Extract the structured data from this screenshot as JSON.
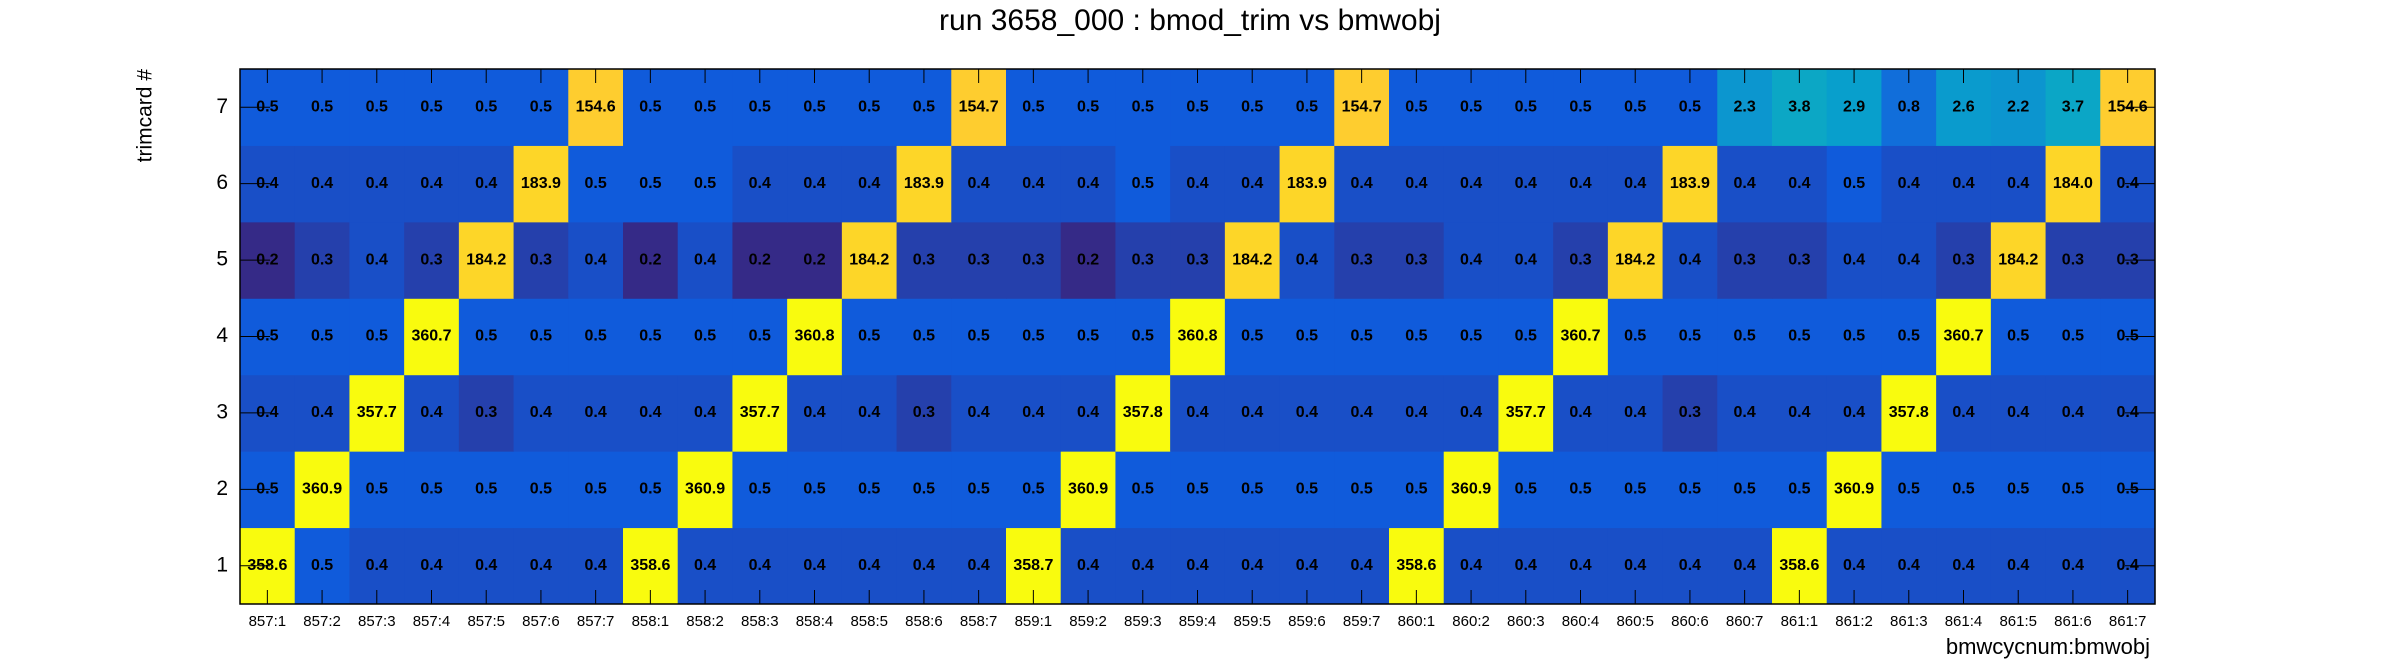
{
  "chart_data": {
    "type": "heatmap",
    "title": "run 3658_000 : bmod_trim vs bmwobj",
    "x_label": "bmwcycnum:bmwobj",
    "y_label": "trimcard #",
    "x": [
      "857:1",
      "857:2",
      "857:3",
      "857:4",
      "857:5",
      "857:6",
      "857:7",
      "858:1",
      "858:2",
      "858:3",
      "858:4",
      "858:5",
      "858:6",
      "858:7",
      "859:1",
      "859:2",
      "859:3",
      "859:4",
      "859:5",
      "859:6",
      "859:7",
      "860:1",
      "860:2",
      "860:3",
      "860:4",
      "860:5",
      "860:6",
      "860:7",
      "861:1",
      "861:2",
      "861:3",
      "861:4",
      "861:5",
      "861:6",
      "861:7"
    ],
    "y": [
      "1",
      "2",
      "3",
      "4",
      "5",
      "6",
      "7"
    ],
    "zlog": true,
    "colormap": [
      "#352a87",
      "#0f5cdd",
      "#1481d6",
      "#06a4ca",
      "#2eb7a4",
      "#87bf77",
      "#d1bb59",
      "#fec832",
      "#f9fb0e"
    ],
    "values": [
      [
        358.6,
        0.5,
        0.4,
        0.4,
        0.4,
        0.4,
        0.4,
        358.6,
        0.4,
        0.4,
        0.4,
        0.4,
        0.4,
        0.4,
        358.7,
        0.4,
        0.4,
        0.4,
        0.4,
        0.4,
        0.4,
        358.6,
        0.4,
        0.4,
        0.4,
        0.4,
        0.4,
        0.4,
        358.6,
        0.4,
        0.4,
        0.4,
        0.4,
        0.4,
        0.4
      ],
      [
        0.5,
        360.9,
        0.5,
        0.5,
        0.5,
        0.5,
        0.5,
        0.5,
        360.9,
        0.5,
        0.5,
        0.5,
        0.5,
        0.5,
        0.5,
        360.9,
        0.5,
        0.5,
        0.5,
        0.5,
        0.5,
        0.5,
        360.9,
        0.5,
        0.5,
        0.5,
        0.5,
        0.5,
        0.5,
        360.9,
        0.5,
        0.5,
        0.5,
        0.5,
        0.5
      ],
      [
        0.4,
        0.4,
        357.7,
        0.4,
        0.3,
        0.4,
        0.4,
        0.4,
        0.4,
        357.7,
        0.4,
        0.4,
        0.3,
        0.4,
        0.4,
        0.4,
        357.8,
        0.4,
        0.4,
        0.4,
        0.4,
        0.4,
        0.4,
        357.7,
        0.4,
        0.4,
        0.3,
        0.4,
        0.4,
        0.4,
        357.8,
        0.4,
        0.4,
        0.4,
        0.4
      ],
      [
        0.5,
        0.5,
        0.5,
        360.7,
        0.5,
        0.5,
        0.5,
        0.5,
        0.5,
        0.5,
        360.8,
        0.5,
        0.5,
        0.5,
        0.5,
        0.5,
        0.5,
        360.8,
        0.5,
        0.5,
        0.5,
        0.5,
        0.5,
        0.5,
        360.7,
        0.5,
        0.5,
        0.5,
        0.5,
        0.5,
        0.5,
        360.7,
        0.5,
        0.5,
        0.5
      ],
      [
        0.2,
        0.3,
        0.4,
        0.3,
        184.2,
        0.3,
        0.4,
        0.2,
        0.4,
        0.2,
        0.2,
        184.2,
        0.3,
        0.3,
        0.3,
        0.2,
        0.3,
        0.3,
        184.2,
        0.4,
        0.3,
        0.3,
        0.4,
        0.4,
        0.3,
        184.2,
        0.4,
        0.3,
        0.3,
        0.4,
        0.4,
        0.3,
        184.2,
        0.3,
        0.3
      ],
      [
        0.4,
        0.4,
        0.4,
        0.4,
        0.4,
        183.9,
        0.5,
        0.5,
        0.5,
        0.4,
        0.4,
        0.4,
        183.9,
        0.4,
        0.4,
        0.4,
        0.5,
        0.4,
        0.4,
        183.9,
        0.4,
        0.4,
        0.4,
        0.4,
        0.4,
        0.4,
        183.9,
        0.4,
        0.4,
        0.5,
        0.4,
        0.4,
        0.4,
        184.0,
        0.4
      ],
      [
        0.5,
        0.5,
        0.5,
        0.5,
        0.5,
        0.5,
        154.6,
        0.5,
        0.5,
        0.5,
        0.5,
        0.5,
        0.5,
        154.7,
        0.5,
        0.5,
        0.5,
        0.5,
        0.5,
        0.5,
        154.7,
        0.5,
        0.5,
        0.5,
        0.5,
        0.5,
        0.5,
        2.3,
        3.8,
        2.9,
        0.8,
        2.6,
        2.2,
        3.7,
        154.6
      ]
    ],
    "value_labels": [
      [
        "358.6",
        "0.5",
        "0.4",
        "0.4",
        "0.4",
        "0.4",
        "0.4",
        "358.6",
        "0.4",
        "0.4",
        "0.4",
        "0.4",
        "0.4",
        "0.4",
        "358.7",
        "0.4",
        "0.4",
        "0.4",
        "0.4",
        "0.4",
        "0.4",
        "358.6",
        "0.4",
        "0.4",
        "0.4",
        "0.4",
        "0.4",
        "0.4",
        "358.6",
        "0.4",
        "0.4",
        "0.4",
        "0.4",
        "0.4",
        "0.4"
      ],
      [
        "0.5",
        "360.9",
        "0.5",
        "0.5",
        "0.5",
        "0.5",
        "0.5",
        "0.5",
        "360.9",
        "0.5",
        "0.5",
        "0.5",
        "0.5",
        "0.5",
        "0.5",
        "360.9",
        "0.5",
        "0.5",
        "0.5",
        "0.5",
        "0.5",
        "0.5",
        "360.9",
        "0.5",
        "0.5",
        "0.5",
        "0.5",
        "0.5",
        "0.5",
        "360.9",
        "0.5",
        "0.5",
        "0.5",
        "0.5",
        "0.5"
      ],
      [
        "0.4",
        "0.4",
        "357.7",
        "0.4",
        "0.3",
        "0.4",
        "0.4",
        "0.4",
        "0.4",
        "357.7",
        "0.4",
        "0.4",
        "0.3",
        "0.4",
        "0.4",
        "0.4",
        "357.8",
        "0.4",
        "0.4",
        "0.4",
        "0.4",
        "0.4",
        "0.4",
        "357.7",
        "0.4",
        "0.4",
        "0.3",
        "0.4",
        "0.4",
        "0.4",
        "357.8",
        "0.4",
        "0.4",
        "0.4",
        "0.4"
      ],
      [
        "0.5",
        "0.5",
        "0.5",
        "360.7",
        "0.5",
        "0.5",
        "0.5",
        "0.5",
        "0.5",
        "0.5",
        "360.8",
        "0.5",
        "0.5",
        "0.5",
        "0.5",
        "0.5",
        "0.5",
        "360.8",
        "0.5",
        "0.5",
        "0.5",
        "0.5",
        "0.5",
        "0.5",
        "360.7",
        "0.5",
        "0.5",
        "0.5",
        "0.5",
        "0.5",
        "0.5",
        "360.7",
        "0.5",
        "0.5",
        "0.5"
      ],
      [
        "0.2",
        "0.3",
        "0.4",
        "0.3",
        "184.2",
        "0.3",
        "0.4",
        "0.2",
        "0.4",
        "0.2",
        "0.2",
        "184.2",
        "0.3",
        "0.3",
        "0.3",
        "0.2",
        "0.3",
        "0.3",
        "184.2",
        "0.4",
        "0.3",
        "0.3",
        "0.4",
        "0.4",
        "0.3",
        "184.2",
        "0.4",
        "0.3",
        "0.3",
        "0.4",
        "0.4",
        "0.3",
        "184.2",
        "0.3",
        "0.3"
      ],
      [
        "0.4",
        "0.4",
        "0.4",
        "0.4",
        "0.4",
        "183.9",
        "0.5",
        "0.5",
        "0.5",
        "0.4",
        "0.4",
        "0.4",
        "183.9",
        "0.4",
        "0.4",
        "0.4",
        "0.5",
        "0.4",
        "0.4",
        "183.9",
        "0.4",
        "0.4",
        "0.4",
        "0.4",
        "0.4",
        "0.4",
        "183.9",
        "0.4",
        "0.4",
        "0.5",
        "0.4",
        "0.4",
        "0.4",
        "184.0",
        "0.4"
      ],
      [
        "0.5",
        "0.5",
        "0.5",
        "0.5",
        "0.5",
        "0.5",
        "154.6",
        "0.5",
        "0.5",
        "0.5",
        "0.5",
        "0.5",
        "0.5",
        "154.7",
        "0.5",
        "0.5",
        "0.5",
        "0.5",
        "0.5",
        "0.5",
        "154.7",
        "0.5",
        "0.5",
        "0.5",
        "0.5",
        "0.5",
        "0.5",
        "2.3",
        "3.8",
        "2.9",
        "0.8",
        "2.6",
        "2.2",
        "3.7",
        "154.6"
      ]
    ]
  }
}
